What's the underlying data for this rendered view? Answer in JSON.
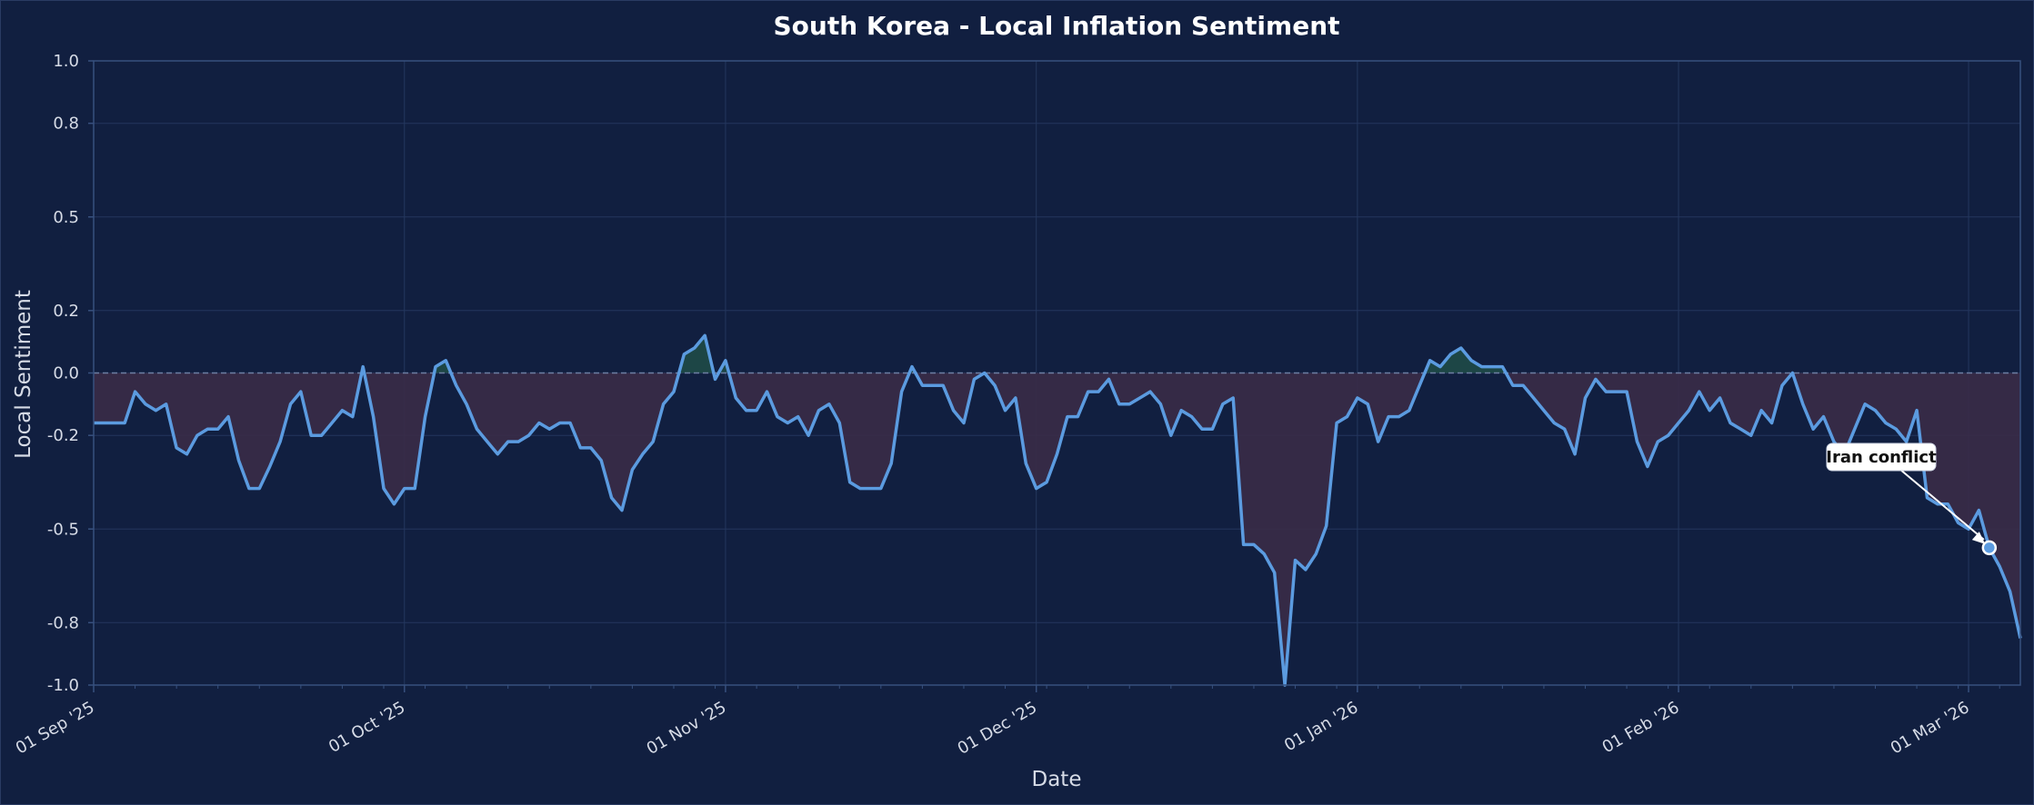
{
  "chart_data": {
    "type": "area",
    "title": "South Korea - Local Inflation Sentiment",
    "xlabel": "Date",
    "ylabel": "Local Sentiment",
    "x_start": "2025-09-01",
    "x_end": "2026-03-06",
    "ylim": [
      -1.0,
      1.0
    ],
    "yticks": [
      -1.0,
      -0.8,
      -0.5,
      -0.2,
      0.0,
      0.2,
      0.5,
      0.8,
      1.0
    ],
    "ytick_labels": [
      "-1.0",
      "-0.8",
      "-0.5",
      "-0.2",
      "0.0",
      "0.2",
      "0.5",
      "0.8",
      "1.0"
    ],
    "xticks": [
      "2025-09-01",
      "2025-10-01",
      "2025-11-01",
      "2025-12-01",
      "2026-01-01",
      "2026-02-01",
      "2026-03-01"
    ],
    "xtick_labels": [
      "01 Sep '25",
      "01 Oct '25",
      "01 Nov '25",
      "01 Dec '25",
      "01 Jan '26",
      "01 Feb '26",
      "01 Mar '26"
    ],
    "grid": true,
    "reference_line": 0.0,
    "colors": {
      "background": "#111f40",
      "line": "#5b9be0",
      "fill_negative": "#3a2b47",
      "fill_positive": "#1f4a47",
      "grid": "#24375e",
      "axis": "#37507e",
      "zero_line": "#6e7fa4"
    },
    "series": [
      {
        "dates": [
          "2025-09-01",
          "2025-09-02",
          "2025-09-03",
          "2025-09-04",
          "2025-09-05",
          "2025-09-06",
          "2025-09-07",
          "2025-09-08",
          "2025-09-09",
          "2025-09-10",
          "2025-09-11",
          "2025-09-12",
          "2025-09-13",
          "2025-09-14",
          "2025-09-15",
          "2025-09-16",
          "2025-09-17",
          "2025-09-18",
          "2025-09-19",
          "2025-09-20",
          "2025-09-21",
          "2025-09-22",
          "2025-09-23",
          "2025-09-24",
          "2025-09-25",
          "2025-09-26",
          "2025-09-27",
          "2025-09-28",
          "2025-09-29",
          "2025-09-30",
          "2025-10-01",
          "2025-10-02",
          "2025-10-03",
          "2025-10-04",
          "2025-10-05",
          "2025-10-06",
          "2025-10-07",
          "2025-10-08",
          "2025-10-09",
          "2025-10-10",
          "2025-10-11",
          "2025-10-12",
          "2025-10-13",
          "2025-10-14",
          "2025-10-15",
          "2025-10-16",
          "2025-10-17",
          "2025-10-18",
          "2025-10-19",
          "2025-10-20",
          "2025-10-21",
          "2025-10-22",
          "2025-10-23",
          "2025-10-24",
          "2025-10-25",
          "2025-10-26",
          "2025-10-27",
          "2025-10-28",
          "2025-10-29",
          "2025-10-30",
          "2025-10-31",
          "2025-11-01",
          "2025-11-02",
          "2025-11-03",
          "2025-11-04",
          "2025-11-05",
          "2025-11-06",
          "2025-11-07",
          "2025-11-08",
          "2025-11-09",
          "2025-11-10",
          "2025-11-11",
          "2025-11-12",
          "2025-11-13",
          "2025-11-14",
          "2025-11-15",
          "2025-11-16",
          "2025-11-17",
          "2025-11-18",
          "2025-11-19",
          "2025-11-20",
          "2025-11-21",
          "2025-11-22",
          "2025-11-23",
          "2025-11-24",
          "2025-11-25",
          "2025-11-26",
          "2025-11-27",
          "2025-11-28",
          "2025-11-29",
          "2025-11-30",
          "2025-12-01",
          "2025-12-02",
          "2025-12-03",
          "2025-12-04",
          "2025-12-05",
          "2025-12-06",
          "2025-12-07",
          "2025-12-08",
          "2025-12-09",
          "2025-12-10",
          "2025-12-11",
          "2025-12-12",
          "2025-12-13",
          "2025-12-14",
          "2025-12-15",
          "2025-12-16",
          "2025-12-17",
          "2025-12-18",
          "2025-12-19",
          "2025-12-20",
          "2025-12-21",
          "2025-12-22",
          "2025-12-23",
          "2025-12-24",
          "2025-12-25",
          "2025-12-26",
          "2025-12-27",
          "2025-12-28",
          "2025-12-29",
          "2025-12-30",
          "2025-12-31",
          "2026-01-01",
          "2026-01-02",
          "2026-01-03",
          "2026-01-04",
          "2026-01-05",
          "2026-01-06",
          "2026-01-07",
          "2026-01-08",
          "2026-01-09",
          "2026-01-10",
          "2026-01-11",
          "2026-01-12",
          "2026-01-13",
          "2026-01-14",
          "2026-01-15",
          "2026-01-16",
          "2026-01-17",
          "2026-01-18",
          "2026-01-19",
          "2026-01-20",
          "2026-01-21",
          "2026-01-22",
          "2026-01-23",
          "2026-01-24",
          "2026-01-25",
          "2026-01-26",
          "2026-01-27",
          "2026-01-28",
          "2026-01-29",
          "2026-01-30",
          "2026-01-31",
          "2026-02-01",
          "2026-02-02",
          "2026-02-03",
          "2026-02-04",
          "2026-02-05",
          "2026-02-06",
          "2026-02-07",
          "2026-02-08",
          "2026-02-09",
          "2026-02-10",
          "2026-02-11",
          "2026-02-12",
          "2026-02-13",
          "2026-02-14",
          "2026-02-15",
          "2026-02-16",
          "2026-02-17",
          "2026-02-18",
          "2026-02-19",
          "2026-02-20",
          "2026-02-21",
          "2026-02-22",
          "2026-02-23",
          "2026-02-24",
          "2026-02-25",
          "2026-02-26",
          "2026-02-27",
          "2026-02-28",
          "2026-03-01",
          "2026-03-02",
          "2026-03-03",
          "2026-03-04",
          "2026-03-05",
          "2026-03-06"
        ],
        "values": [
          -0.16,
          -0.16,
          -0.16,
          -0.16,
          -0.06,
          -0.1,
          -0.12,
          -0.1,
          -0.24,
          -0.26,
          -0.2,
          -0.18,
          -0.18,
          -0.14,
          -0.28,
          -0.37,
          -0.37,
          -0.3,
          -0.22,
          -0.1,
          -0.06,
          -0.2,
          -0.2,
          -0.16,
          -0.12,
          -0.14,
          0.02,
          -0.14,
          -0.37,
          -0.42,
          -0.37,
          -0.37,
          -0.14,
          0.02,
          0.04,
          -0.04,
          -0.1,
          -0.18,
          -0.22,
          -0.26,
          -0.22,
          -0.22,
          -0.2,
          -0.16,
          -0.18,
          -0.16,
          -0.16,
          -0.24,
          -0.24,
          -0.28,
          -0.4,
          -0.44,
          -0.31,
          -0.26,
          -0.22,
          -0.1,
          -0.06,
          0.06,
          0.08,
          0.12,
          -0.02,
          0.04,
          -0.08,
          -0.12,
          -0.12,
          -0.06,
          -0.14,
          -0.16,
          -0.14,
          -0.2,
          -0.12,
          -0.1,
          -0.16,
          -0.35,
          -0.37,
          -0.37,
          -0.37,
          -0.29,
          -0.06,
          0.02,
          -0.04,
          -0.04,
          -0.04,
          -0.12,
          -0.16,
          -0.02,
          0.0,
          -0.04,
          -0.12,
          -0.08,
          -0.29,
          -0.37,
          -0.35,
          -0.26,
          -0.14,
          -0.14,
          -0.06,
          -0.06,
          -0.02,
          -0.1,
          -0.1,
          -0.08,
          -0.06,
          -0.1,
          -0.2,
          -0.12,
          -0.14,
          -0.18,
          -0.18,
          -0.1,
          -0.08,
          -0.55,
          -0.55,
          -0.58,
          -0.64,
          -1.0,
          -0.6,
          -0.63,
          -0.58,
          -0.49,
          -0.16,
          -0.14,
          -0.08,
          -0.1,
          -0.22,
          -0.14,
          -0.14,
          -0.12,
          -0.04,
          0.04,
          0.02,
          0.06,
          0.08,
          0.04,
          0.02,
          0.02,
          0.02,
          -0.04,
          -0.04,
          -0.08,
          -0.12,
          -0.16,
          -0.18,
          -0.26,
          -0.08,
          -0.02,
          -0.06,
          -0.06,
          -0.06,
          -0.22,
          -0.3,
          -0.22,
          -0.2,
          -0.16,
          -0.12,
          -0.06,
          -0.12,
          -0.08,
          -0.16,
          -0.18,
          -0.2,
          -0.12,
          -0.16,
          -0.04,
          0.0,
          -0.1,
          -0.18,
          -0.14,
          -0.22,
          -0.26,
          -0.18,
          -0.1,
          -0.12,
          -0.16,
          -0.18,
          -0.22,
          -0.12,
          -0.4,
          -0.42,
          -0.42,
          -0.48,
          -0.5,
          -0.44,
          -0.56,
          -0.62,
          -0.7,
          -0.85
        ]
      }
    ],
    "annotation": {
      "text": "Iran conflict",
      "date": "2026-03-03",
      "value": -0.56
    }
  }
}
